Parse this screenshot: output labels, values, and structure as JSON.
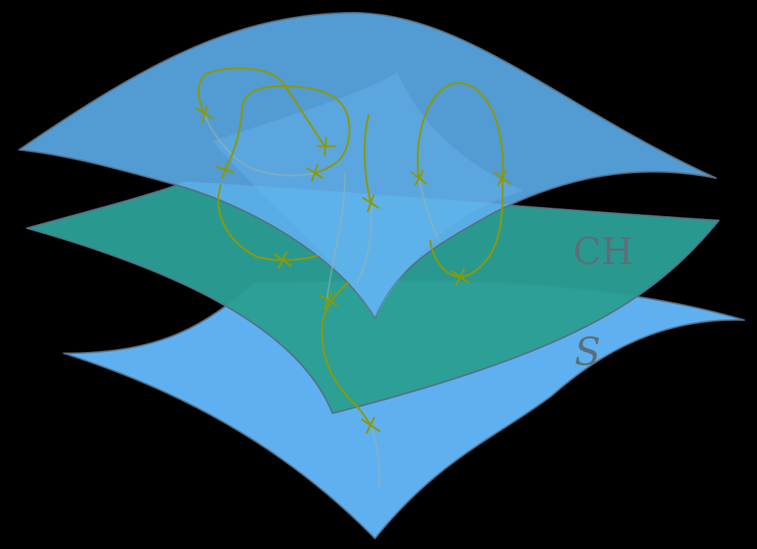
{
  "labels": {
    "ch": "CH",
    "s": "S"
  },
  "colors": {
    "background": "#000000",
    "upper_sheet": "#5fb0f0",
    "middle_sheet": "#2a9e94",
    "lower_sheet": "#5fb0f0",
    "sheet_outline": "#557085",
    "geodesic": "#8a9a00",
    "label": "#5b6f78"
  },
  "marker": "cross-icon"
}
